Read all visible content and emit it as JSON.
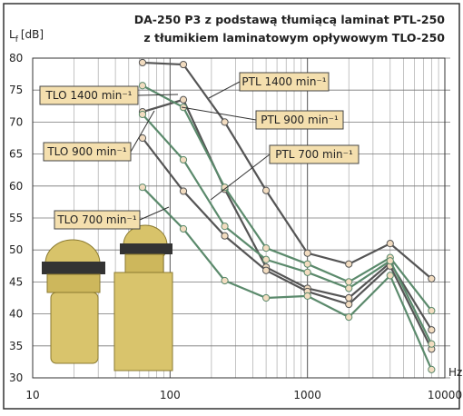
{
  "chart_data": {
    "type": "line",
    "title": [
      "DA-250 P3 z podstawą tłumiącą laminat PTL-250",
      "z tłumikiem laminatowym opływowym TLO-250"
    ],
    "y_label": {
      "main": "L",
      "sub": "f",
      "unit": "[dB]"
    },
    "x_label": "Hz",
    "log_x": true,
    "grid": true,
    "x": [
      63,
      125,
      250,
      500,
      1000,
      2000,
      4000,
      8000
    ],
    "xlim": [
      10,
      10000
    ],
    "xticks": [
      10,
      100,
      1000,
      10000
    ],
    "xminor": [
      20,
      30,
      40,
      50,
      60,
      70,
      80,
      90,
      200,
      300,
      400,
      500,
      600,
      700,
      800,
      900,
      2000,
      3000,
      4000,
      5000,
      6000,
      7000,
      8000,
      9000
    ],
    "ylim": [
      30,
      80
    ],
    "yticks": [
      30,
      35,
      40,
      45,
      50,
      55,
      60,
      65,
      70,
      75,
      80
    ],
    "series": [
      {
        "name": "PTL 1400 min⁻¹",
        "color": "#555555",
        "values": [
          79.3,
          79,
          70,
          59.3,
          49.5,
          47.8,
          51,
          45.5
        ]
      },
      {
        "name": "PTL 900 min⁻¹",
        "color": "#555555",
        "values": [
          71.6,
          73.5,
          59.5,
          47.3,
          44,
          42.5,
          48,
          37.5
        ]
      },
      {
        "name": "PTL 700 min⁻¹",
        "color": "#555555",
        "values": [
          67.5,
          59.2,
          52.2,
          46.8,
          43.5,
          41.5,
          47.5,
          34.5
        ]
      },
      {
        "name": "TLO 1400 min⁻¹",
        "color": "#5b8a6c",
        "values": [
          75.7,
          72.3,
          59.8,
          50.3,
          47.8,
          45,
          48.8,
          40.5
        ]
      },
      {
        "name": "TLO 900 min⁻¹",
        "color": "#5b8a6c",
        "values": [
          71.2,
          64.1,
          53.7,
          48.5,
          46.5,
          44,
          48.3,
          35.3
        ]
      },
      {
        "name": "TLO 700 min⁻¹",
        "color": "#5b8a6c",
        "values": [
          59.8,
          53.3,
          45.2,
          42.5,
          42.8,
          39.5,
          46,
          31.3
        ]
      }
    ]
  }
}
